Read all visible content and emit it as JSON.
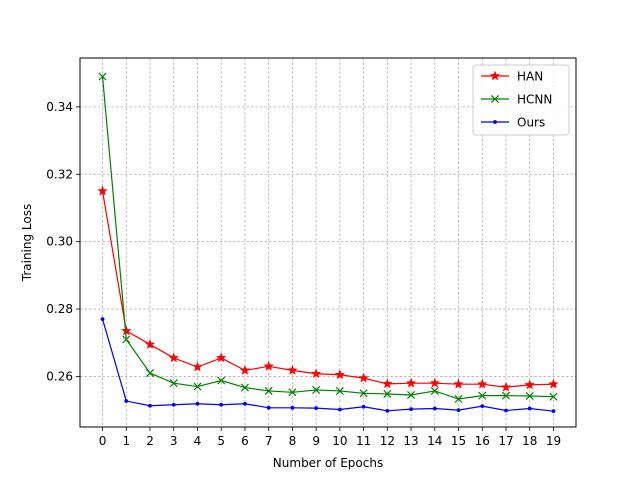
{
  "chart_data": {
    "type": "line",
    "xlabel": "Number of Epochs",
    "ylabel": "Training Loss",
    "x": [
      0,
      1,
      2,
      3,
      4,
      5,
      6,
      7,
      8,
      9,
      10,
      11,
      12,
      13,
      14,
      15,
      16,
      17,
      18,
      19
    ],
    "xlim": [
      -0.95,
      19.95
    ],
    "ylim": [
      0.245,
      0.3545
    ],
    "yticks": [
      0.26,
      0.28,
      0.3,
      0.32,
      0.34
    ],
    "ytick_labels": [
      "0.26",
      "0.28",
      "0.30",
      "0.32",
      "0.34"
    ],
    "xtick_labels": [
      "0",
      "1",
      "2",
      "3",
      "4",
      "5",
      "6",
      "7",
      "8",
      "9",
      "10",
      "11",
      "12",
      "13",
      "14",
      "15",
      "16",
      "17",
      "18",
      "19"
    ],
    "grid": true,
    "legend_position": "top-right",
    "series": [
      {
        "name": "HAN",
        "color": "#ff0000",
        "marker": "star",
        "values": [
          0.315,
          0.2735,
          0.2695,
          0.2655,
          0.2628,
          0.2655,
          0.2618,
          0.263,
          0.2618,
          0.2608,
          0.2605,
          0.2595,
          0.2578,
          0.258,
          0.258,
          0.2577,
          0.2577,
          0.2568,
          0.2575,
          0.2577
        ]
      },
      {
        "name": "HCNN",
        "color": "#008000",
        "marker": "x",
        "values": [
          0.349,
          0.271,
          0.261,
          0.258,
          0.257,
          0.2588,
          0.2567,
          0.2557,
          0.2553,
          0.256,
          0.2557,
          0.255,
          0.2548,
          0.2545,
          0.2557,
          0.2533,
          0.2543,
          0.2543,
          0.2542,
          0.254
        ]
      },
      {
        "name": "Ours",
        "color": "#0000ff",
        "marker": "dot",
        "values": [
          0.277,
          0.2527,
          0.2513,
          0.2516,
          0.2519,
          0.2516,
          0.2519,
          0.2507,
          0.2507,
          0.2506,
          0.2502,
          0.251,
          0.2498,
          0.2503,
          0.2505,
          0.25,
          0.2512,
          0.2499,
          0.2505,
          0.2497
        ]
      }
    ]
  }
}
